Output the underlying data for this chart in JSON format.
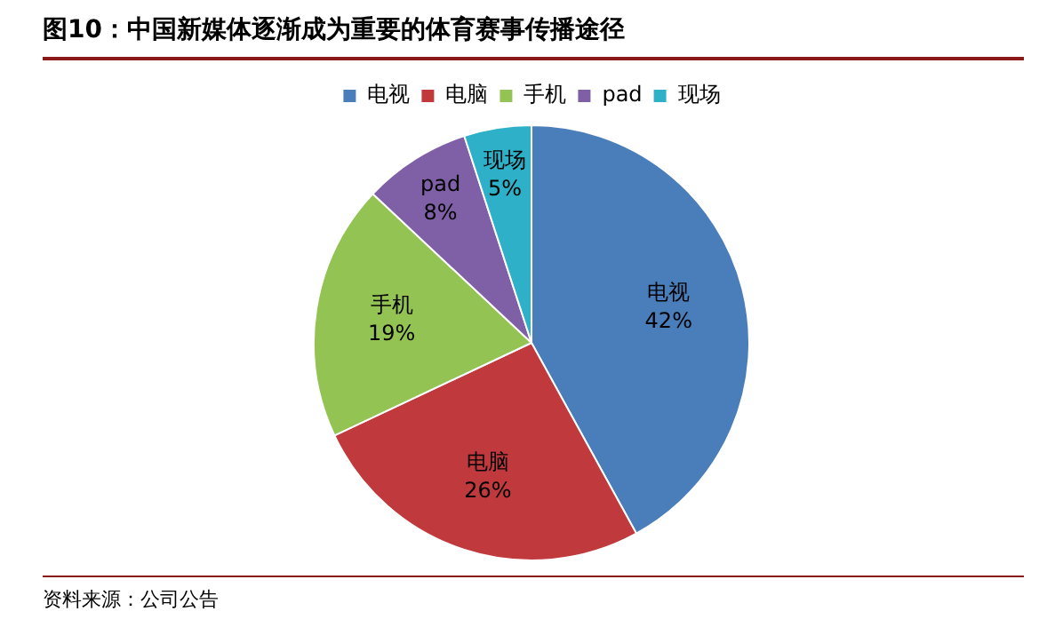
{
  "chart_data": {
    "type": "pie",
    "title": "图10：中国新媒体逐渐成为重要的体育赛事传播途径",
    "categories": [
      "电视",
      "电脑",
      "手机",
      "pad",
      "现场"
    ],
    "values": [
      42,
      26,
      19,
      8,
      5
    ],
    "colors": [
      "#4a7ebb",
      "#c0393c",
      "#92c353",
      "#7f5fa6",
      "#2db0c8"
    ],
    "value_labels": [
      "42%",
      "26%",
      "19%",
      "8%",
      "5%"
    ],
    "legend": "top",
    "annotations": [
      "资料来源：公司公告"
    ]
  }
}
